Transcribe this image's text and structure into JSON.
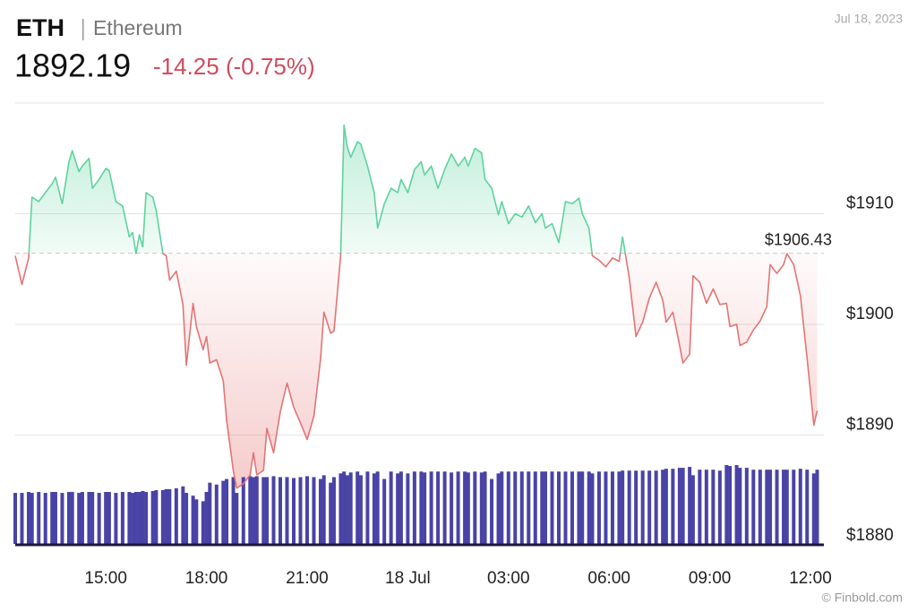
{
  "header": {
    "symbol": "ETH",
    "name": "Ethereum",
    "price": "1892.19",
    "change": "-14.25 (-0.75%)",
    "date": "Jul 18, 2023",
    "source": "© Finbold.com"
  },
  "chart_data": {
    "type": "line",
    "x": [
      12.3,
      12.5,
      12.7,
      12.8,
      13.0,
      13.2,
      13.4,
      13.5,
      13.7,
      13.9,
      14.0,
      14.2,
      14.3,
      14.5,
      14.6,
      14.8,
      15.0,
      15.1,
      15.3,
      15.5,
      15.7,
      15.8,
      15.9,
      16.0,
      16.1,
      16.2,
      16.4,
      16.5,
      16.7,
      16.8,
      16.9,
      17.1,
      17.3,
      17.4,
      17.6,
      17.7,
      17.9,
      18.0,
      18.1,
      18.3,
      18.5,
      18.6,
      18.8,
      18.9,
      19.1,
      19.3,
      19.4,
      19.5,
      19.7,
      19.8,
      20.0,
      20.2,
      20.4,
      20.6,
      20.8,
      21.0,
      21.2,
      21.4,
      21.5,
      21.7,
      21.8,
      22.0,
      22.1,
      22.2,
      22.3,
      22.5,
      22.6,
      22.8,
      23.0,
      23.1,
      23.3,
      23.5,
      23.7,
      23.8,
      24.0,
      24.2,
      24.4,
      24.5,
      24.7,
      24.9,
      25.1,
      25.3,
      25.5,
      25.7,
      25.8,
      26.0,
      26.2,
      26.3,
      26.5,
      26.7,
      26.8,
      27.0,
      27.2,
      27.4,
      27.6,
      27.8,
      28.0,
      28.1,
      28.3,
      28.5,
      28.7,
      28.9,
      29.1,
      29.2,
      29.4,
      29.5,
      29.7,
      29.9,
      30.1,
      30.3,
      30.4,
      30.6,
      30.8,
      31.0,
      31.2,
      31.4,
      31.6,
      31.7,
      31.9,
      32.1,
      32.2,
      32.4,
      32.5,
      32.7,
      32.9,
      33.1,
      33.3,
      33.5,
      33.6,
      33.8,
      33.9,
      34.1,
      34.3,
      34.5,
      34.7,
      34.8,
      35.0,
      35.2,
      35.3,
      35.5,
      35.7,
      35.9,
      36.1,
      36.2
    ],
    "series": [
      {
        "values": [
          1906.2,
          1903.6,
          1906.0,
          1911.5,
          1911.1,
          1911.9,
          1912.7,
          1913.3,
          1910.9,
          1914.7,
          1915.7,
          1913.8,
          1914.3,
          1915.0,
          1912.3,
          1913.1,
          1914.1,
          1913.9,
          1911.1,
          1910.7,
          1907.9,
          1908.3,
          1906.4,
          1908.1,
          1907.0,
          1911.9,
          1911.5,
          1910.3,
          1906.4,
          1906.2,
          1904.0,
          1904.8,
          1901.8,
          1896.3,
          1901.9,
          1899.8,
          1897.7,
          1898.9,
          1896.5,
          1896.8,
          1894.9,
          1891.3,
          1886.8,
          1885.2,
          1885.6,
          1886.4,
          1888.4,
          1886.4,
          1886.8,
          1890.6,
          1888.4,
          1892.1,
          1894.7,
          1892.5,
          1891.1,
          1889.6,
          1891.7,
          1896.9,
          1901.1,
          1899.2,
          1899.4,
          1906.2,
          1918.0,
          1916.0,
          1915.1,
          1916.5,
          1916.3,
          1914.3,
          1911.9,
          1908.7,
          1910.9,
          1912.3,
          1911.9,
          1913.1,
          1911.9,
          1914.0,
          1914.7,
          1913.5,
          1914.3,
          1912.3,
          1914.0,
          1915.4,
          1914.3,
          1915.1,
          1914.3,
          1915.9,
          1915.5,
          1913.1,
          1912.3,
          1909.9,
          1911.1,
          1909.1,
          1910.0,
          1909.7,
          1910.7,
          1909.2,
          1910.0,
          1908.7,
          1909.1,
          1907.4,
          1911.1,
          1910.9,
          1911.4,
          1910.0,
          1908.7,
          1906.2,
          1905.8,
          1905.2,
          1906.0,
          1905.7,
          1907.9,
          1904.2,
          1898.9,
          1900.2,
          1902.4,
          1903.8,
          1902.2,
          1900.2,
          1901.1,
          1898.1,
          1896.5,
          1897.3,
          1904.4,
          1903.8,
          1901.9,
          1903.2,
          1901.8,
          1901.9,
          1899.8,
          1900.0,
          1898.1,
          1898.4,
          1899.5,
          1900.3,
          1901.6,
          1905.4,
          1904.6,
          1905.4,
          1906.4,
          1905.4,
          1902.6,
          1896.9,
          1890.9,
          1892.2
        ],
        "color_up": "#5dd39e",
        "color_down": "#e57373"
      }
    ],
    "volume": {
      "color": "#4a43a6",
      "values": [
        55,
        55,
        56,
        55,
        56,
        55,
        56,
        56,
        55,
        56,
        56,
        55,
        56,
        56,
        56,
        55,
        56,
        56,
        55,
        56,
        56,
        55,
        56,
        56,
        57,
        56,
        57,
        58,
        58,
        59,
        59,
        60,
        62,
        55,
        52,
        48,
        46,
        56,
        66,
        64,
        68,
        70,
        72,
        55,
        72,
        73,
        72,
        73,
        72,
        72,
        73,
        72,
        72,
        71,
        72,
        73,
        72,
        70,
        74,
        66,
        72,
        76,
        78,
        74,
        77,
        78,
        74,
        78,
        76,
        78,
        70,
        78,
        76,
        78,
        76,
        78,
        78,
        77,
        78,
        78,
        78,
        77,
        78,
        78,
        77,
        78,
        77,
        78,
        70,
        76,
        78,
        78,
        78,
        78,
        78,
        78,
        78,
        78,
        78,
        78,
        78,
        78,
        78,
        78,
        78,
        76,
        78,
        78,
        78,
        78,
        79,
        79,
        79,
        79,
        79,
        79,
        80,
        81,
        81,
        82,
        82,
        83,
        74,
        80,
        80,
        80,
        79,
        85,
        84,
        85,
        82,
        82,
        80,
        80,
        80,
        80,
        80,
        80,
        80,
        80,
        81,
        80,
        76,
        80
      ]
    },
    "baseline": {
      "value": 1906.43,
      "label": "$1906.43"
    },
    "xlim": [
      12.3,
      36.4
    ],
    "xticks": [
      {
        "value": 15,
        "label": "15:00"
      },
      {
        "value": 18,
        "label": "18:00"
      },
      {
        "value": 21,
        "label": "21:00"
      },
      {
        "value": 24,
        "label": "18 Jul"
      },
      {
        "value": 27,
        "label": "03:00"
      },
      {
        "value": 30,
        "label": "06:00"
      },
      {
        "value": 33,
        "label": "09:00"
      },
      {
        "value": 36,
        "label": "12:00"
      }
    ],
    "ylim": [
      1880,
      1920
    ],
    "yticks": [
      {
        "value": 1880,
        "label": "$1880"
      },
      {
        "value": 1890,
        "label": "$1890"
      },
      {
        "value": 1900,
        "label": "$1900"
      },
      {
        "value": 1910,
        "label": "$1910"
      }
    ],
    "grid": true
  }
}
